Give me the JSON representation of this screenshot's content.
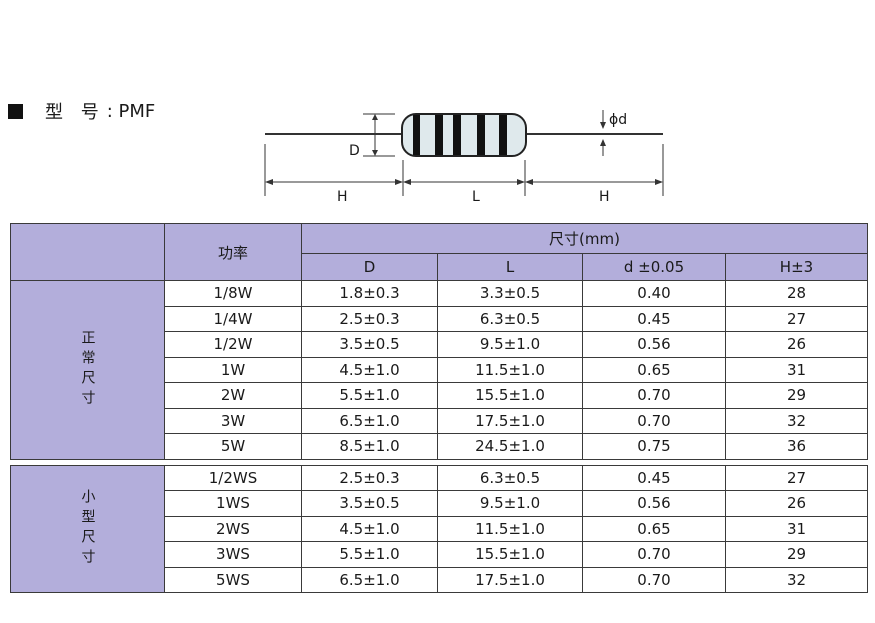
{
  "heading": {
    "label": "型 号",
    "value": ": PMF"
  },
  "diagram": {
    "diameter_label": "D",
    "lead_label": "ϕd",
    "left_lead_label": "H",
    "body_label": "L",
    "right_lead_label": "H"
  },
  "table": {
    "header": {
      "power": "功率",
      "dimensions": "尺寸(mm)",
      "columns": [
        "D",
        "L",
        "d ±0.05",
        "H±3"
      ]
    },
    "groups": [
      {
        "label": "正常尺寸",
        "rows": [
          {
            "power": "1/8W",
            "D": "1.8±0.3",
            "L": "3.3±0.5",
            "d": "0.40",
            "H": "28"
          },
          {
            "power": "1/4W",
            "D": "2.5±0.3",
            "L": "6.3±0.5",
            "d": "0.45",
            "H": "27"
          },
          {
            "power": "1/2W",
            "D": "3.5±0.5",
            "L": "9.5±1.0",
            "d": "0.56",
            "H": "26"
          },
          {
            "power": "1W",
            "D": "4.5±1.0",
            "L": "11.5±1.0",
            "d": "0.65",
            "H": "31"
          },
          {
            "power": "2W",
            "D": "5.5±1.0",
            "L": "15.5±1.0",
            "d": "0.70",
            "H": "29"
          },
          {
            "power": "3W",
            "D": "6.5±1.0",
            "L": "17.5±1.0",
            "d": "0.70",
            "H": "32"
          },
          {
            "power": "5W",
            "D": "8.5±1.0",
            "L": "24.5±1.0",
            "d": "0.75",
            "H": "36"
          }
        ]
      },
      {
        "label": "小型尺寸",
        "rows": [
          {
            "power": "1/2WS",
            "D": "2.5±0.3",
            "L": "6.3±0.5",
            "d": "0.45",
            "H": "27"
          },
          {
            "power": "1WS",
            "D": "3.5±0.5",
            "L": "9.5±1.0",
            "d": "0.56",
            "H": "26"
          },
          {
            "power": "2WS",
            "D": "4.5±1.0",
            "L": "11.5±1.0",
            "d": "0.65",
            "H": "31"
          },
          {
            "power": "3WS",
            "D": "5.5±1.0",
            "L": "15.5±1.0",
            "d": "0.70",
            "H": "29"
          },
          {
            "power": "5WS",
            "D": "6.5±1.0",
            "L": "17.5±1.0",
            "d": "0.70",
            "H": "32"
          }
        ]
      }
    ]
  },
  "colors": {
    "header_fill": "#b3aedb",
    "resistor_body": "#dfe9ec",
    "band": "#111111"
  }
}
